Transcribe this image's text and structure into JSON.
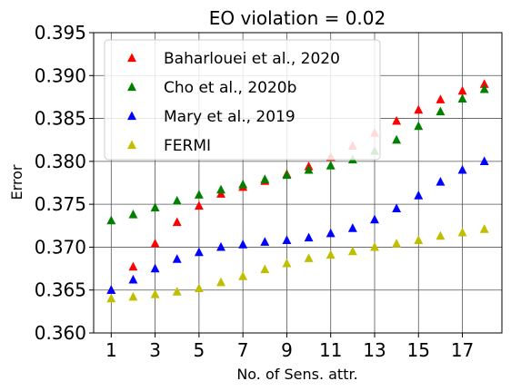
{
  "chart_data": {
    "type": "scatter",
    "title": "EO violation = 0.02",
    "xlabel": "No. of Sens. attr.",
    "ylabel": "Error",
    "xlim": [
      0.2,
      18.8
    ],
    "ylim": [
      0.36,
      0.395
    ],
    "xticks": [
      1,
      3,
      5,
      7,
      9,
      11,
      13,
      15,
      17
    ],
    "xtick_labels": [
      "1",
      "3",
      "5",
      "7",
      "9",
      "11",
      "13",
      "15",
      "17"
    ],
    "yticks": [
      0.36,
      0.365,
      0.37,
      0.375,
      0.38,
      0.385,
      0.39,
      0.395
    ],
    "ytick_labels": [
      "0.360",
      "0.365",
      "0.370",
      "0.375",
      "0.380",
      "0.385",
      "0.390",
      "0.395"
    ],
    "grid": true,
    "legend_position": "top-left",
    "marker": "triangle",
    "series": [
      {
        "name": "Baharlouei et al., 2020",
        "color": "#ff0000",
        "x": [
          1,
          2,
          3,
          4,
          5,
          6,
          7,
          8,
          9,
          10,
          11,
          12,
          13,
          14,
          15,
          16,
          17,
          18
        ],
        "y": [
          0.365,
          0.3677,
          0.3704,
          0.3729,
          0.3748,
          0.3762,
          0.377,
          0.3777,
          0.3785,
          0.3794,
          0.3805,
          0.3818,
          0.3833,
          0.3847,
          0.386,
          0.3872,
          0.3882,
          0.389
        ]
      },
      {
        "name": "Cho et al., 2020b",
        "color": "#008000",
        "x": [
          1,
          2,
          3,
          4,
          5,
          6,
          7,
          8,
          9,
          10,
          11,
          12,
          13,
          14,
          15,
          16,
          17,
          18
        ],
        "y": [
          0.3731,
          0.3738,
          0.3746,
          0.3754,
          0.3761,
          0.3767,
          0.3773,
          0.3779,
          0.3784,
          0.379,
          0.3795,
          0.3802,
          0.3812,
          0.3825,
          0.3841,
          0.3858,
          0.3873,
          0.3884
        ]
      },
      {
        "name": "Mary et al., 2019",
        "color": "#0000ff",
        "x": [
          1,
          2,
          3,
          4,
          5,
          6,
          7,
          8,
          9,
          10,
          11,
          12,
          13,
          14,
          15,
          16,
          17,
          18
        ],
        "y": [
          0.365,
          0.3662,
          0.3675,
          0.3686,
          0.3694,
          0.37,
          0.3703,
          0.3706,
          0.3708,
          0.3711,
          0.3716,
          0.3722,
          0.3732,
          0.3745,
          0.376,
          0.3776,
          0.379,
          0.38
        ]
      },
      {
        "name": "FERMI",
        "color": "#bfbf00",
        "x": [
          1,
          2,
          3,
          4,
          5,
          6,
          7,
          8,
          9,
          10,
          11,
          12,
          13,
          14,
          15,
          16,
          17,
          18
        ],
        "y": [
          0.364,
          0.3642,
          0.3645,
          0.3648,
          0.3652,
          0.3659,
          0.3666,
          0.3674,
          0.3681,
          0.3687,
          0.3691,
          0.3695,
          0.37,
          0.3704,
          0.3708,
          0.3713,
          0.3717,
          0.3721
        ]
      }
    ]
  }
}
